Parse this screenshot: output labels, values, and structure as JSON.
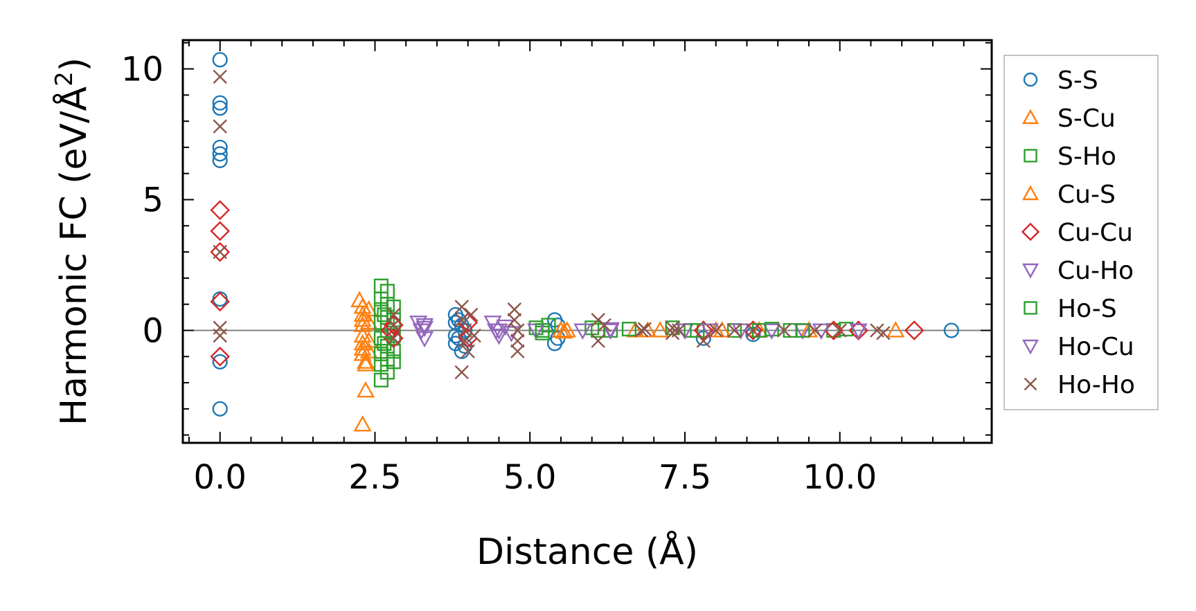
{
  "chart_data": {
    "type": "scatter",
    "title": "",
    "xlabel": "Distance (Å)",
    "ylabel_main": "Harmonic FC (eV/Å",
    "ylabel_sup": "2",
    "ylabel_close": ")",
    "xlim": [
      -0.6,
      12.45
    ],
    "ylim": [
      -4.3,
      11.1
    ],
    "xticks": [
      0.0,
      2.5,
      5.0,
      7.5,
      10.0
    ],
    "xtick_labels": [
      "0.0",
      "2.5",
      "5.0",
      "7.5",
      "10.0"
    ],
    "yticks": [
      0,
      5,
      10
    ],
    "ytick_labels": [
      "0",
      "5",
      "10"
    ],
    "zero_line": true,
    "legend_position": "outside-right",
    "colors": {
      "blue": "#1f77b4",
      "orange": "#ff7f0e",
      "green": "#2ca02c",
      "red": "#d62728",
      "purple": "#9467bd",
      "brown": "#8c564b",
      "zero_line": "#808080"
    },
    "series": [
      {
        "name": "S-S",
        "marker": "circle",
        "color": "#1f77b4",
        "points": [
          [
            0,
            10.35
          ],
          [
            0,
            8.7
          ],
          [
            0,
            8.5
          ],
          [
            0,
            7.0
          ],
          [
            0,
            6.75
          ],
          [
            0,
            6.5
          ],
          [
            0,
            1.2
          ],
          [
            0,
            -1.2
          ],
          [
            0,
            -3.0
          ],
          [
            3.8,
            0.6
          ],
          [
            3.8,
            0.3
          ],
          [
            3.8,
            -0.2
          ],
          [
            3.8,
            -0.5
          ],
          [
            3.85,
            0.4
          ],
          [
            3.85,
            -0.3
          ],
          [
            3.9,
            -0.8
          ],
          [
            3.9,
            0.2
          ],
          [
            3.95,
            -0.6
          ],
          [
            3.95,
            0.0
          ],
          [
            5.4,
            0.4
          ],
          [
            5.4,
            -0.5
          ],
          [
            5.45,
            0.2
          ],
          [
            5.45,
            -0.3
          ],
          [
            7.8,
            -0.3
          ],
          [
            8.6,
            -0.15
          ],
          [
            11.8,
            0.0
          ]
        ]
      },
      {
        "name": "S-Cu",
        "marker": "triangle-up",
        "color": "#ff7f0e",
        "points": [
          [
            2.25,
            1.15
          ],
          [
            2.3,
            0.9
          ],
          [
            2.3,
            0.6
          ],
          [
            2.3,
            0.2
          ],
          [
            2.3,
            -0.2
          ],
          [
            2.3,
            -0.5
          ],
          [
            2.3,
            -0.9
          ],
          [
            2.35,
            -1.3
          ],
          [
            2.35,
            -1.2
          ],
          [
            2.35,
            -2.3
          ],
          [
            2.3,
            -3.6
          ],
          [
            2.4,
            0.8
          ],
          [
            2.4,
            0.3
          ],
          [
            2.4,
            -0.4
          ],
          [
            2.4,
            -0.8
          ],
          [
            5.5,
            0.0
          ],
          [
            5.55,
            -0.05
          ],
          [
            6.7,
            0.0
          ],
          [
            7.1,
            0.0
          ],
          [
            8.0,
            0.0
          ],
          [
            8.7,
            0.0
          ],
          [
            9.5,
            0.0
          ],
          [
            10.9,
            0.0
          ]
        ]
      },
      {
        "name": "S-Ho",
        "marker": "square",
        "color": "#2ca02c",
        "points": [
          [
            2.6,
            1.7
          ],
          [
            2.6,
            1.2
          ],
          [
            2.6,
            0.8
          ],
          [
            2.6,
            0.3
          ],
          [
            2.6,
            -0.3
          ],
          [
            2.6,
            -0.9
          ],
          [
            2.6,
            -1.3
          ],
          [
            2.6,
            -1.9
          ],
          [
            2.7,
            1.5
          ],
          [
            2.7,
            1.0
          ],
          [
            2.7,
            0.5
          ],
          [
            2.7,
            0.0
          ],
          [
            2.7,
            -0.6
          ],
          [
            2.7,
            -1.1
          ],
          [
            2.7,
            -1.6
          ],
          [
            2.8,
            0.9
          ],
          [
            2.8,
            0.4
          ],
          [
            2.8,
            -0.2
          ],
          [
            2.8,
            -0.8
          ],
          [
            2.8,
            -1.2
          ],
          [
            5.1,
            0.1
          ],
          [
            5.2,
            -0.1
          ],
          [
            5.3,
            0.2
          ],
          [
            6.0,
            0.1
          ],
          [
            6.3,
            0.0
          ],
          [
            6.6,
            0.05
          ],
          [
            7.3,
            0.1
          ],
          [
            7.6,
            0.0
          ],
          [
            8.3,
            0.0
          ],
          [
            8.9,
            0.05
          ],
          [
            9.2,
            0.0
          ],
          [
            9.9,
            0.0
          ],
          [
            10.1,
            0.05
          ]
        ]
      },
      {
        "name": "Cu-S",
        "marker": "triangle-up",
        "color": "#ff7f0e",
        "points": [
          [
            2.3,
            0.4
          ],
          [
            2.3,
            -0.7
          ],
          [
            5.6,
            0.0
          ],
          [
            6.9,
            0.0
          ],
          [
            8.1,
            0.0
          ]
        ]
      },
      {
        "name": "Cu-Cu",
        "marker": "diamond",
        "color": "#d62728",
        "points": [
          [
            0,
            4.6
          ],
          [
            0,
            3.8
          ],
          [
            0,
            3.0
          ],
          [
            0,
            1.1
          ],
          [
            0,
            -1.0
          ],
          [
            2.75,
            0.0
          ],
          [
            2.8,
            0.2
          ],
          [
            2.8,
            -0.3
          ],
          [
            4.0,
            0.3
          ],
          [
            4.0,
            -0.3
          ],
          [
            7.8,
            0.0
          ],
          [
            8.6,
            0.0
          ],
          [
            9.9,
            0.0
          ],
          [
            10.3,
            0.0
          ],
          [
            11.2,
            0.0
          ]
        ]
      },
      {
        "name": "Cu-Ho",
        "marker": "triangle-down",
        "color": "#9467bd",
        "points": [
          [
            3.2,
            0.3
          ],
          [
            3.25,
            0.0
          ],
          [
            3.3,
            -0.3
          ],
          [
            3.3,
            0.1
          ],
          [
            4.4,
            0.3
          ],
          [
            4.45,
            0.0
          ],
          [
            4.5,
            -0.2
          ],
          [
            4.6,
            0.15
          ],
          [
            4.7,
            -0.1
          ],
          [
            5.1,
            0.0
          ],
          [
            5.85,
            0.0
          ],
          [
            6.3,
            0.0
          ],
          [
            7.5,
            0.0
          ],
          [
            7.9,
            0.0
          ],
          [
            8.4,
            0.0
          ],
          [
            8.9,
            0.0
          ],
          [
            9.4,
            0.0
          ],
          [
            9.7,
            0.0
          ],
          [
            10.3,
            0.0
          ]
        ]
      },
      {
        "name": "Ho-S",
        "marker": "square",
        "color": "#2ca02c",
        "points": [
          [
            2.65,
            0.6
          ],
          [
            2.65,
            -0.5
          ],
          [
            5.2,
            0.0
          ],
          [
            6.1,
            0.0
          ],
          [
            7.7,
            0.0
          ],
          [
            8.7,
            0.0
          ],
          [
            9.4,
            0.0
          ]
        ]
      },
      {
        "name": "Ho-Cu",
        "marker": "triangle-down",
        "color": "#9467bd",
        "points": [
          [
            3.3,
            0.2
          ],
          [
            4.5,
            0.0
          ],
          [
            6.3,
            0.05
          ],
          [
            7.9,
            0.0
          ],
          [
            10.3,
            0.0
          ]
        ]
      },
      {
        "name": "Ho-Ho",
        "marker": "x",
        "color": "#8c564b",
        "points": [
          [
            0,
            9.7
          ],
          [
            0,
            7.8
          ],
          [
            0,
            3.0
          ],
          [
            0,
            0.1
          ],
          [
            0,
            -0.2
          ],
          [
            2.8,
            0.6
          ],
          [
            2.8,
            0.2
          ],
          [
            2.8,
            -0.3
          ],
          [
            3.9,
            0.9
          ],
          [
            3.9,
            0.4
          ],
          [
            3.95,
            0.0
          ],
          [
            3.95,
            -0.4
          ],
          [
            3.9,
            -1.6
          ],
          [
            4.0,
            -0.8
          ],
          [
            4.05,
            0.6
          ],
          [
            4.1,
            -0.2
          ],
          [
            4.75,
            0.8
          ],
          [
            4.75,
            0.4
          ],
          [
            4.8,
            0.0
          ],
          [
            4.8,
            -0.4
          ],
          [
            4.8,
            -0.8
          ],
          [
            6.1,
            0.4
          ],
          [
            6.1,
            -0.4
          ],
          [
            6.2,
            0.2
          ],
          [
            6.8,
            0.0
          ],
          [
            6.85,
            0.05
          ],
          [
            7.3,
            0.1
          ],
          [
            7.3,
            -0.1
          ],
          [
            7.4,
            0.0
          ],
          [
            7.8,
            -0.4
          ],
          [
            8.0,
            0.0
          ],
          [
            8.3,
            0.0
          ],
          [
            8.6,
            0.0
          ],
          [
            9.1,
            0.0
          ],
          [
            9.6,
            0.0
          ],
          [
            10.0,
            0.0
          ],
          [
            10.6,
            0.0
          ],
          [
            10.7,
            -0.1
          ]
        ]
      }
    ]
  }
}
